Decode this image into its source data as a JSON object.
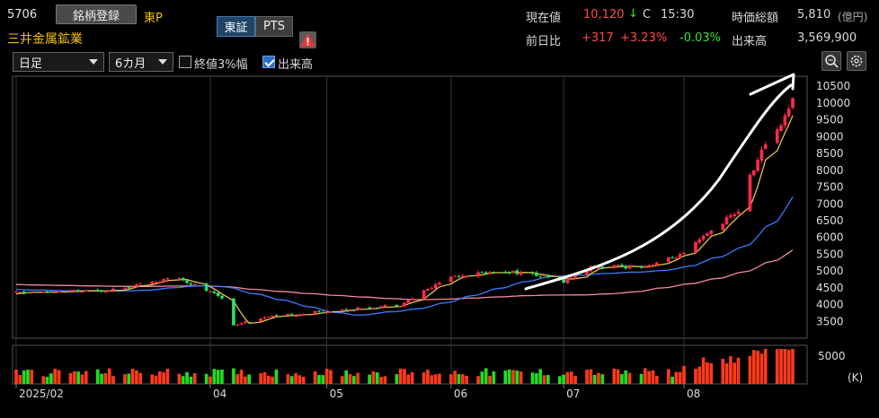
{
  "header": {
    "code": "5706",
    "register_label": "銘柄登録",
    "market": "東P",
    "name": "三井金属鉱業",
    "exchange_tabs": [
      "東証",
      "PTS"
    ],
    "current_price_label": "現在値",
    "current_price": "10,120",
    "arrow": "↓",
    "price_flag": "C",
    "time": "15:30",
    "market_cap_label": "時価総額",
    "market_cap": "5,810",
    "market_cap_unit": "(億円)",
    "change_label": "前日比",
    "change": "+317",
    "change_pct": "+3.23%",
    "change_pct2": "-0.03%",
    "volume_label": "出来高",
    "volume": "3,569,900"
  },
  "controls": {
    "interval": "日足",
    "period": "6カ月",
    "opt1_label": "終値3%幅",
    "opt1_checked": false,
    "opt2_label": "出来高",
    "opt2_checked": true
  },
  "colors": {
    "up": "#ff2a4a",
    "down": "#2edc66",
    "ma_short": "#e6c34a",
    "ma_mid": "#3a7bff",
    "ma_long": "#f58aa0",
    "vol_up": "#ff3a1a",
    "vol_down": "#22dd22"
  },
  "chart_data": {
    "type": "candlestick",
    "ylim": [
      3000,
      10800
    ],
    "yticks": [
      10500,
      10000,
      9500,
      9000,
      8500,
      8000,
      7500,
      7000,
      6500,
      6000,
      5500,
      5000,
      4500,
      4000,
      3500
    ],
    "x_labels": [
      "2025/02",
      "04",
      "05",
      "06",
      "07",
      "08"
    ],
    "x_label_dates": [
      "2025-02-10",
      "2025-04-01",
      "2025-05-01",
      "2025-06-02",
      "2025-07-01",
      "2025-08-01"
    ],
    "start_date": "2025-02-10",
    "end_date": "2025-08-29",
    "keypoints": [
      [
        "2025-02-10",
        4350
      ],
      [
        "2025-03-03",
        4400
      ],
      [
        "2025-03-24",
        4800
      ],
      [
        "2025-04-04",
        4200
      ],
      [
        "2025-04-07",
        3400
      ],
      [
        "2025-04-14",
        3600
      ],
      [
        "2025-05-01",
        3800
      ],
      [
        "2025-05-20",
        4000
      ],
      [
        "2025-06-02",
        4850
      ],
      [
        "2025-06-16",
        5000
      ],
      [
        "2025-06-23",
        4900
      ],
      [
        "2025-07-01",
        4700
      ],
      [
        "2025-07-08",
        5100
      ],
      [
        "2025-07-22",
        5150
      ],
      [
        "2025-08-01",
        5500
      ],
      [
        "2025-08-08",
        6200
      ],
      [
        "2025-08-15",
        6800
      ],
      [
        "2025-08-18",
        7800
      ],
      [
        "2025-08-22",
        8800
      ],
      [
        "2025-08-26",
        9400
      ],
      [
        "2025-08-29",
        10120
      ]
    ],
    "volume_ytick": "5000",
    "volume_unit": "(K)"
  }
}
